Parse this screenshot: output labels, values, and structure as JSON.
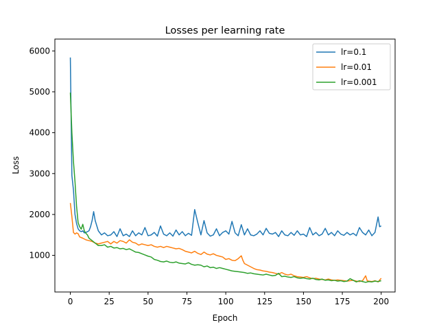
{
  "chart_data": {
    "type": "line",
    "title": "Losses per learning rate",
    "xlabel": "Epoch",
    "ylabel": "Loss",
    "xlim": [
      -9.95,
      208.95
    ],
    "ylim": [
      104,
      6290
    ],
    "xticks": [
      0,
      25,
      50,
      75,
      100,
      125,
      150,
      175,
      200
    ],
    "yticks": [
      1000,
      2000,
      3000,
      4000,
      5000,
      6000
    ],
    "grid": false,
    "legend_position": "upper right",
    "series": [
      {
        "name": "lr=0.1",
        "color": "#1f77b4",
        "points": [
          [
            0,
            5840
          ],
          [
            1,
            2950
          ],
          [
            2,
            2600
          ],
          [
            3,
            2000
          ],
          [
            4,
            1780
          ],
          [
            5,
            1650
          ],
          [
            6,
            1600
          ],
          [
            7,
            1580
          ],
          [
            8,
            1600
          ],
          [
            9,
            1550
          ],
          [
            10,
            1560
          ],
          [
            12,
            1600
          ],
          [
            13,
            1700
          ],
          [
            14,
            1850
          ],
          [
            15,
            2070
          ],
          [
            16,
            1850
          ],
          [
            18,
            1600
          ],
          [
            20,
            1500
          ],
          [
            22,
            1550
          ],
          [
            24,
            1480
          ],
          [
            26,
            1500
          ],
          [
            28,
            1580
          ],
          [
            30,
            1460
          ],
          [
            32,
            1650
          ],
          [
            34,
            1480
          ],
          [
            36,
            1520
          ],
          [
            38,
            1460
          ],
          [
            40,
            1600
          ],
          [
            42,
            1480
          ],
          [
            44,
            1550
          ],
          [
            46,
            1500
          ],
          [
            48,
            1680
          ],
          [
            50,
            1480
          ],
          [
            52,
            1500
          ],
          [
            54,
            1560
          ],
          [
            56,
            1470
          ],
          [
            58,
            1720
          ],
          [
            60,
            1520
          ],
          [
            62,
            1480
          ],
          [
            64,
            1550
          ],
          [
            66,
            1470
          ],
          [
            68,
            1620
          ],
          [
            70,
            1500
          ],
          [
            72,
            1580
          ],
          [
            74,
            1480
          ],
          [
            76,
            1540
          ],
          [
            78,
            1490
          ],
          [
            80,
            2120
          ],
          [
            82,
            1800
          ],
          [
            84,
            1500
          ],
          [
            86,
            1850
          ],
          [
            88,
            1550
          ],
          [
            90,
            1470
          ],
          [
            92,
            1500
          ],
          [
            94,
            1650
          ],
          [
            96,
            1480
          ],
          [
            98,
            1560
          ],
          [
            100,
            1600
          ],
          [
            102,
            1520
          ],
          [
            104,
            1830
          ],
          [
            106,
            1550
          ],
          [
            108,
            1480
          ],
          [
            110,
            1750
          ],
          [
            112,
            1500
          ],
          [
            114,
            1650
          ],
          [
            116,
            1500
          ],
          [
            118,
            1480
          ],
          [
            120,
            1520
          ],
          [
            122,
            1600
          ],
          [
            124,
            1500
          ],
          [
            126,
            1660
          ],
          [
            128,
            1540
          ],
          [
            130,
            1520
          ],
          [
            132,
            1560
          ],
          [
            134,
            1460
          ],
          [
            136,
            1600
          ],
          [
            138,
            1500
          ],
          [
            140,
            1480
          ],
          [
            142,
            1560
          ],
          [
            144,
            1490
          ],
          [
            146,
            1600
          ],
          [
            148,
            1500
          ],
          [
            150,
            1520
          ],
          [
            152,
            1460
          ],
          [
            154,
            1680
          ],
          [
            156,
            1500
          ],
          [
            158,
            1560
          ],
          [
            160,
            1480
          ],
          [
            162,
            1520
          ],
          [
            164,
            1660
          ],
          [
            166,
            1500
          ],
          [
            168,
            1560
          ],
          [
            170,
            1480
          ],
          [
            172,
            1600
          ],
          [
            174,
            1520
          ],
          [
            176,
            1490
          ],
          [
            178,
            1560
          ],
          [
            180,
            1500
          ],
          [
            182,
            1540
          ],
          [
            184,
            1480
          ],
          [
            186,
            1680
          ],
          [
            188,
            1560
          ],
          [
            190,
            1500
          ],
          [
            192,
            1620
          ],
          [
            194,
            1480
          ],
          [
            196,
            1560
          ],
          [
            198,
            1940
          ],
          [
            199,
            1700
          ],
          [
            200,
            1720
          ]
        ]
      },
      {
        "name": "lr=0.01",
        "color": "#ff7f0e",
        "points": [
          [
            0,
            2280
          ],
          [
            1,
            1950
          ],
          [
            2,
            1560
          ],
          [
            3,
            1520
          ],
          [
            4,
            1550
          ],
          [
            5,
            1530
          ],
          [
            6,
            1450
          ],
          [
            8,
            1420
          ],
          [
            10,
            1380
          ],
          [
            12,
            1360
          ],
          [
            14,
            1340
          ],
          [
            16,
            1300
          ],
          [
            18,
            1280
          ],
          [
            20,
            1300
          ],
          [
            22,
            1320
          ],
          [
            24,
            1340
          ],
          [
            26,
            1280
          ],
          [
            28,
            1340
          ],
          [
            30,
            1300
          ],
          [
            32,
            1360
          ],
          [
            34,
            1340
          ],
          [
            36,
            1300
          ],
          [
            38,
            1380
          ],
          [
            40,
            1320
          ],
          [
            42,
            1300
          ],
          [
            44,
            1250
          ],
          [
            46,
            1280
          ],
          [
            48,
            1260
          ],
          [
            50,
            1240
          ],
          [
            52,
            1260
          ],
          [
            54,
            1220
          ],
          [
            56,
            1200
          ],
          [
            58,
            1220
          ],
          [
            60,
            1190
          ],
          [
            62,
            1220
          ],
          [
            64,
            1200
          ],
          [
            66,
            1180
          ],
          [
            68,
            1160
          ],
          [
            70,
            1170
          ],
          [
            72,
            1140
          ],
          [
            74,
            1100
          ],
          [
            76,
            1080
          ],
          [
            78,
            1060
          ],
          [
            80,
            1100
          ],
          [
            82,
            1050
          ],
          [
            84,
            1020
          ],
          [
            86,
            1080
          ],
          [
            88,
            1030
          ],
          [
            90,
            1010
          ],
          [
            92,
            1040
          ],
          [
            94,
            1000
          ],
          [
            96,
            980
          ],
          [
            98,
            960
          ],
          [
            100,
            900
          ],
          [
            102,
            920
          ],
          [
            104,
            880
          ],
          [
            106,
            870
          ],
          [
            108,
            920
          ],
          [
            110,
            990
          ],
          [
            111,
            880
          ],
          [
            112,
            800
          ],
          [
            114,
            760
          ],
          [
            116,
            720
          ],
          [
            118,
            680
          ],
          [
            120,
            650
          ],
          [
            122,
            640
          ],
          [
            124,
            620
          ],
          [
            126,
            610
          ],
          [
            128,
            590
          ],
          [
            130,
            580
          ],
          [
            132,
            560
          ],
          [
            134,
            540
          ],
          [
            136,
            580
          ],
          [
            138,
            540
          ],
          [
            140,
            520
          ],
          [
            142,
            540
          ],
          [
            144,
            500
          ],
          [
            146,
            480
          ],
          [
            148,
            470
          ],
          [
            150,
            460
          ],
          [
            152,
            480
          ],
          [
            154,
            450
          ],
          [
            156,
            430
          ],
          [
            158,
            440
          ],
          [
            160,
            420
          ],
          [
            162,
            410
          ],
          [
            164,
            400
          ],
          [
            166,
            420
          ],
          [
            168,
            400
          ],
          [
            170,
            390
          ],
          [
            172,
            400
          ],
          [
            174,
            390
          ],
          [
            176,
            380
          ],
          [
            178,
            370
          ],
          [
            180,
            380
          ],
          [
            182,
            390
          ],
          [
            184,
            370
          ],
          [
            186,
            360
          ],
          [
            188,
            380
          ],
          [
            190,
            500
          ],
          [
            191,
            380
          ],
          [
            192,
            370
          ],
          [
            194,
            360
          ],
          [
            196,
            380
          ],
          [
            198,
            350
          ],
          [
            200,
            440
          ]
        ]
      },
      {
        "name": "lr=0.001",
        "color": "#2ca02c",
        "points": [
          [
            0,
            4980
          ],
          [
            1,
            4000
          ],
          [
            2,
            3300
          ],
          [
            3,
            2800
          ],
          [
            4,
            2200
          ],
          [
            5,
            1800
          ],
          [
            6,
            1700
          ],
          [
            7,
            1640
          ],
          [
            8,
            1760
          ],
          [
            9,
            1600
          ],
          [
            10,
            1540
          ],
          [
            11,
            1500
          ],
          [
            12,
            1420
          ],
          [
            14,
            1360
          ],
          [
            16,
            1300
          ],
          [
            18,
            1240
          ],
          [
            20,
            1240
          ],
          [
            22,
            1260
          ],
          [
            24,
            1200
          ],
          [
            26,
            1220
          ],
          [
            28,
            1180
          ],
          [
            30,
            1190
          ],
          [
            32,
            1160
          ],
          [
            34,
            1170
          ],
          [
            36,
            1140
          ],
          [
            38,
            1160
          ],
          [
            40,
            1120
          ],
          [
            42,
            1080
          ],
          [
            44,
            1070
          ],
          [
            46,
            1040
          ],
          [
            48,
            1010
          ],
          [
            50,
            980
          ],
          [
            52,
            960
          ],
          [
            54,
            900
          ],
          [
            56,
            880
          ],
          [
            58,
            850
          ],
          [
            60,
            840
          ],
          [
            62,
            860
          ],
          [
            64,
            830
          ],
          [
            66,
            820
          ],
          [
            68,
            840
          ],
          [
            70,
            810
          ],
          [
            72,
            800
          ],
          [
            74,
            790
          ],
          [
            76,
            820
          ],
          [
            78,
            780
          ],
          [
            80,
            760
          ],
          [
            82,
            770
          ],
          [
            84,
            760
          ],
          [
            86,
            720
          ],
          [
            88,
            740
          ],
          [
            90,
            700
          ],
          [
            92,
            710
          ],
          [
            94,
            680
          ],
          [
            96,
            700
          ],
          [
            98,
            680
          ],
          [
            100,
            660
          ],
          [
            102,
            640
          ],
          [
            104,
            620
          ],
          [
            106,
            610
          ],
          [
            108,
            600
          ],
          [
            110,
            590
          ],
          [
            112,
            580
          ],
          [
            114,
            560
          ],
          [
            116,
            570
          ],
          [
            118,
            550
          ],
          [
            120,
            540
          ],
          [
            122,
            530
          ],
          [
            124,
            520
          ],
          [
            126,
            540
          ],
          [
            128,
            520
          ],
          [
            130,
            500
          ],
          [
            132,
            510
          ],
          [
            134,
            560
          ],
          [
            136,
            480
          ],
          [
            138,
            490
          ],
          [
            140,
            470
          ],
          [
            142,
            460
          ],
          [
            144,
            480
          ],
          [
            146,
            450
          ],
          [
            148,
            440
          ],
          [
            150,
            450
          ],
          [
            152,
            430
          ],
          [
            154,
            420
          ],
          [
            156,
            440
          ],
          [
            158,
            410
          ],
          [
            160,
            400
          ],
          [
            162,
            420
          ],
          [
            164,
            390
          ],
          [
            166,
            400
          ],
          [
            168,
            380
          ],
          [
            170,
            390
          ],
          [
            172,
            370
          ],
          [
            174,
            380
          ],
          [
            176,
            360
          ],
          [
            178,
            370
          ],
          [
            180,
            430
          ],
          [
            182,
            390
          ],
          [
            184,
            350
          ],
          [
            186,
            380
          ],
          [
            188,
            360
          ],
          [
            190,
            340
          ],
          [
            192,
            360
          ],
          [
            194,
            350
          ],
          [
            196,
            370
          ],
          [
            198,
            360
          ],
          [
            200,
            380
          ]
        ]
      }
    ]
  }
}
